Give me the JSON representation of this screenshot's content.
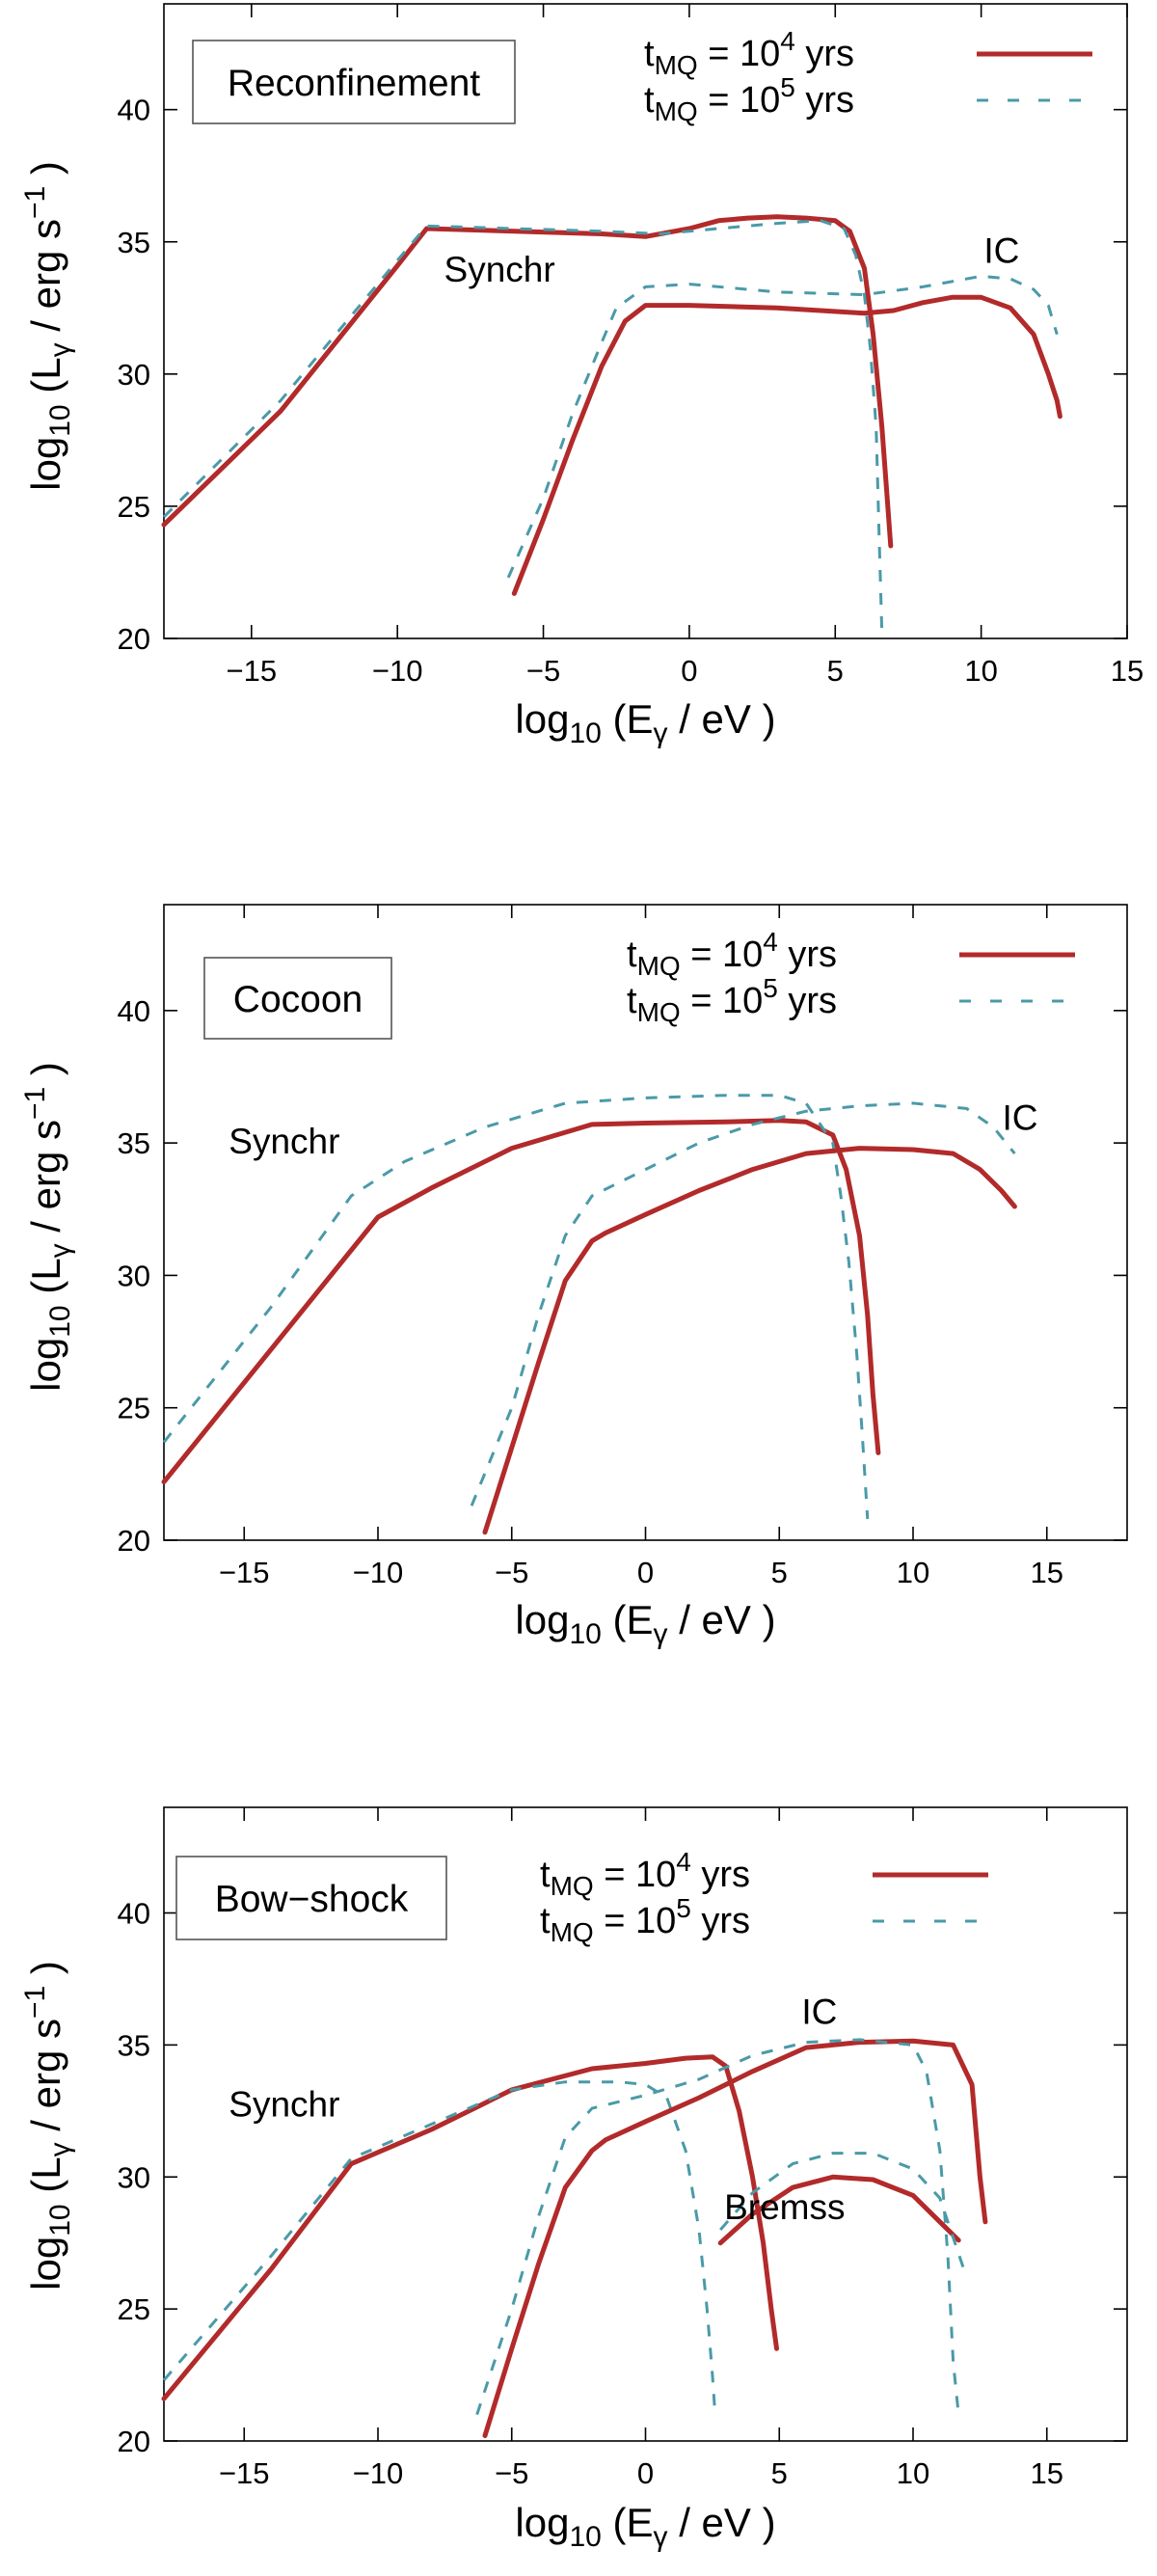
{
  "figure": {
    "x_axis_title": {
      "prefix": "log",
      "sub": "10",
      "body": " (E",
      "gamma": "γ",
      "tail": " / eV )"
    },
    "y_axis_title": {
      "prefix": "log",
      "sub": "10",
      "body": " (L",
      "gamma": "γ",
      "mid": " / erg s",
      "sup": "−1",
      "tail": " )"
    },
    "legend": [
      {
        "name": "t",
        "sub": "MQ",
        "mid": " = 10",
        "sup": "4",
        "tail": " yrs",
        "style": "solid",
        "color": "#b22a2a"
      },
      {
        "name": "t",
        "sub": "MQ",
        "mid": " = 10",
        "sup": "5",
        "tail": " yrs",
        "style": "dashed",
        "color": "#4a9aa8"
      }
    ]
  },
  "chart_data": [
    {
      "type": "line",
      "title": "Reconfinement",
      "xlim": [
        -18,
        15
      ],
      "ylim": [
        20,
        44
      ],
      "xticks": [
        -15,
        -10,
        -5,
        0,
        5,
        10,
        15
      ],
      "yticks": [
        20,
        25,
        30,
        35,
        40
      ],
      "xtick_labels": [
        "−15",
        "−10",
        "−5",
        "0",
        "5",
        "10",
        "15"
      ],
      "ytick_labels": [
        "20",
        "25",
        "30",
        "35",
        "40"
      ],
      "annotations": [
        {
          "text": "Synchr",
          "x": -6.5,
          "y": 33.5
        },
        {
          "text": "IC",
          "x": 10.7,
          "y": 34.2
        }
      ],
      "series": [
        {
          "name": "Synchr, t_MQ = 10^4 yrs",
          "style": "solid",
          "x": [
            -18,
            -14,
            -10,
            -9,
            -6,
            -3,
            -1.5,
            0,
            1,
            2,
            3,
            4,
            5,
            5.5,
            6,
            6.3,
            6.6,
            6.8,
            6.9
          ],
          "y": [
            24.3,
            28.6,
            34.1,
            35.5,
            35.4,
            35.3,
            35.2,
            35.5,
            35.8,
            35.9,
            35.95,
            35.9,
            35.8,
            35.4,
            34.0,
            31.5,
            28,
            25,
            23.5
          ]
        },
        {
          "name": "Synchr, t_MQ = 10^5 yrs",
          "style": "dashed",
          "x": [
            -18,
            -14,
            -10,
            -9,
            -6,
            -3,
            -1,
            1,
            3,
            4.5,
            5.3,
            5.7,
            6.0,
            6.2,
            6.4,
            6.5,
            6.6
          ],
          "y": [
            24.6,
            29.0,
            34.3,
            35.6,
            35.5,
            35.4,
            35.3,
            35.5,
            35.7,
            35.8,
            35.5,
            34.5,
            33.0,
            31.0,
            28.0,
            24.0,
            20.2
          ]
        },
        {
          "name": "IC, t_MQ = 10^4 yrs",
          "style": "solid",
          "x": [
            -6,
            -5,
            -4,
            -3,
            -2.2,
            -1.5,
            0,
            3,
            6,
            7,
            8,
            9,
            10,
            11,
            11.8,
            12.3,
            12.6,
            12.7
          ],
          "y": [
            21.7,
            24.5,
            27.5,
            30.3,
            32.0,
            32.6,
            32.6,
            32.5,
            32.3,
            32.4,
            32.7,
            32.9,
            32.9,
            32.5,
            31.5,
            30.0,
            29.0,
            28.4
          ]
        },
        {
          "name": "IC, t_MQ = 10^5 yrs",
          "style": "dashed",
          "x": [
            -6.2,
            -5,
            -4,
            -3,
            -2.5,
            -1.5,
            0,
            3,
            6,
            8,
            9,
            10,
            11,
            11.8,
            12.3,
            12.6
          ],
          "y": [
            22.3,
            25.3,
            28.5,
            31.2,
            32.5,
            33.3,
            33.4,
            33.1,
            33.0,
            33.3,
            33.5,
            33.7,
            33.6,
            33.2,
            32.6,
            31.5
          ]
        }
      ]
    },
    {
      "type": "line",
      "title": "Cocoon",
      "xlim": [
        -18,
        18
      ],
      "ylim": [
        20,
        44
      ],
      "xticks": [
        -15,
        -10,
        -5,
        0,
        5,
        10,
        15
      ],
      "yticks": [
        20,
        25,
        30,
        35,
        40
      ],
      "xtick_labels": [
        "−15",
        "−10",
        "−5",
        "0",
        "5",
        "10",
        "15"
      ],
      "ytick_labels": [
        "20",
        "25",
        "30",
        "35",
        "40"
      ],
      "annotations": [
        {
          "text": "Synchr",
          "x": -13.5,
          "y": 34.6
        },
        {
          "text": "IC",
          "x": 14.0,
          "y": 35.5
        }
      ],
      "series": [
        {
          "name": "Synchr, t_MQ = 10^4 yrs",
          "style": "solid",
          "x": [
            -18,
            -14,
            -10,
            -8,
            -5,
            -2,
            0,
            3,
            5,
            6,
            7,
            7.5,
            8.0,
            8.3,
            8.5,
            8.7
          ],
          "y": [
            22.2,
            27.2,
            32.2,
            33.3,
            34.8,
            35.7,
            35.75,
            35.8,
            35.85,
            35.8,
            35.3,
            34.0,
            31.5,
            28.5,
            25.5,
            23.3
          ]
        },
        {
          "name": "Synchr, t_MQ = 10^5 yrs",
          "style": "dashed",
          "x": [
            -18,
            -14,
            -11,
            -9,
            -6,
            -3,
            0,
            3,
            5,
            6,
            7,
            7.3,
            7.6,
            7.9,
            8.1,
            8.3
          ],
          "y": [
            23.7,
            28.8,
            33.0,
            34.3,
            35.6,
            36.5,
            36.7,
            36.8,
            36.8,
            36.5,
            35.0,
            33.0,
            30.5,
            27.0,
            24.0,
            20.8
          ]
        },
        {
          "name": "IC, t_MQ = 10^4 yrs",
          "style": "solid",
          "x": [
            -6,
            -5,
            -4,
            -3,
            -2,
            -1.5,
            0,
            2,
            4,
            6,
            8,
            10,
            11.5,
            12.5,
            13.3,
            13.8
          ],
          "y": [
            20.3,
            23.5,
            26.7,
            29.8,
            31.3,
            31.6,
            32.3,
            33.2,
            34.0,
            34.6,
            34.8,
            34.75,
            34.6,
            34.0,
            33.2,
            32.6
          ]
        },
        {
          "name": "IC, t_MQ = 10^5 yrs",
          "style": "dashed",
          "x": [
            -6.5,
            -5,
            -4,
            -3,
            -2,
            0,
            2,
            4,
            6,
            8,
            10,
            12,
            13,
            13.8
          ],
          "y": [
            21.3,
            25.0,
            28.5,
            31.5,
            33.0,
            34.0,
            35.0,
            35.7,
            36.2,
            36.4,
            36.5,
            36.3,
            35.6,
            34.6
          ]
        }
      ]
    },
    {
      "type": "line",
      "title": "Bow−shock",
      "xlim": [
        -18,
        18
      ],
      "ylim": [
        20,
        44
      ],
      "xticks": [
        -15,
        -10,
        -5,
        0,
        5,
        10,
        15
      ],
      "yticks": [
        20,
        25,
        30,
        35,
        40
      ],
      "xtick_labels": [
        "−15",
        "−10",
        "−5",
        "0",
        "5",
        "10",
        "15"
      ],
      "ytick_labels": [
        "20",
        "25",
        "30",
        "35",
        "40"
      ],
      "annotations": [
        {
          "text": "Synchr",
          "x": -13.5,
          "y": 32.3
        },
        {
          "text": "IC",
          "x": 6.5,
          "y": 35.8
        },
        {
          "text": "Bremss",
          "x": 5.2,
          "y": 28.4
        }
      ],
      "series": [
        {
          "name": "Synchr, t_MQ = 10^4 yrs",
          "style": "solid",
          "x": [
            -18,
            -14,
            -11,
            -8,
            -5,
            -2,
            0,
            1.5,
            2.5,
            3.0,
            3.5,
            4.0,
            4.4,
            4.7,
            4.9
          ],
          "y": [
            21.6,
            26.5,
            30.5,
            31.8,
            33.3,
            34.1,
            34.3,
            34.5,
            34.55,
            34.2,
            32.5,
            30.0,
            27.5,
            25.0,
            23.5
          ]
        },
        {
          "name": "Synchr, t_MQ = 10^5 yrs",
          "style": "dashed",
          "x": [
            -18,
            -14,
            -11,
            -8,
            -5,
            -3,
            -1,
            0,
            0.8,
            1.5,
            2.0,
            2.3,
            2.5,
            2.6
          ],
          "y": [
            22.3,
            27.0,
            30.7,
            32.0,
            33.3,
            33.6,
            33.6,
            33.5,
            33.0,
            31.0,
            28.0,
            25.0,
            22.5,
            21.0
          ]
        },
        {
          "name": "IC, t_MQ = 10^4 yrs",
          "style": "solid",
          "x": [
            -6,
            -5,
            -4,
            -3,
            -2,
            -1.5,
            0,
            2,
            4,
            6,
            8,
            10,
            11.5,
            12.2,
            12.5,
            12.7
          ],
          "y": [
            20.2,
            23.5,
            26.7,
            29.6,
            31.0,
            31.4,
            32.1,
            33.0,
            34.0,
            34.9,
            35.1,
            35.15,
            35.0,
            33.5,
            30.0,
            28.3
          ]
        },
        {
          "name": "IC, t_MQ = 10^5 yrs",
          "style": "dashed",
          "x": [
            -6.3,
            -5,
            -4,
            -3,
            -2,
            0,
            2,
            4,
            6,
            8,
            10,
            10.5,
            11,
            11.3,
            11.5,
            11.7
          ],
          "y": [
            21.0,
            25.0,
            28.5,
            31.5,
            32.6,
            33.1,
            33.7,
            34.6,
            35.1,
            35.2,
            35.0,
            34.0,
            31.0,
            27.0,
            23.0,
            21.0
          ]
        },
        {
          "name": "Bremss, t_MQ = 10^4 yrs",
          "style": "solid",
          "x": [
            2.8,
            4,
            5.5,
            7,
            8.5,
            10,
            11,
            11.7
          ],
          "y": [
            27.5,
            28.6,
            29.6,
            30.0,
            29.9,
            29.3,
            28.3,
            27.6
          ]
        },
        {
          "name": "Bremss, t_MQ = 10^5 yrs",
          "style": "dashed",
          "x": [
            2.8,
            4,
            5.5,
            7,
            8.5,
            10,
            11,
            11.9
          ],
          "y": [
            28.0,
            29.4,
            30.5,
            30.9,
            30.9,
            30.3,
            29.2,
            26.5
          ]
        }
      ]
    }
  ]
}
